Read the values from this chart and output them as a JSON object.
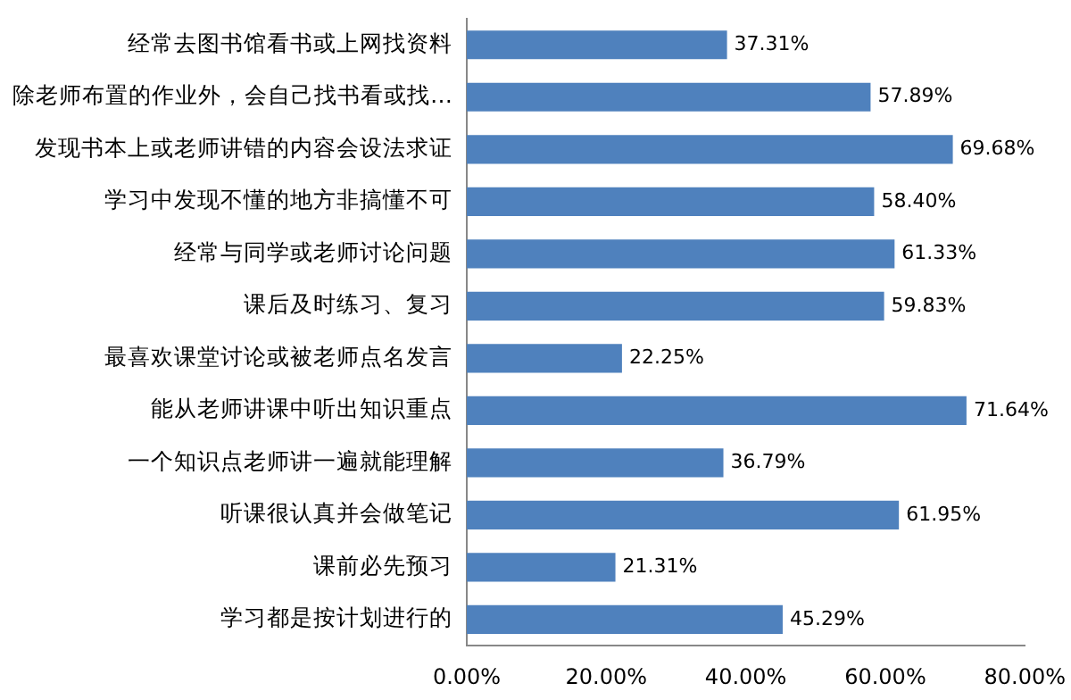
{
  "chart_data": {
    "type": "bar",
    "orientation": "horizontal",
    "categories": [
      "经常去图书馆看书或上网找资料",
      "除老师布置的作业外，会自己找书看或找…",
      "发现书本上或老师讲错的内容会设法求证",
      "学习中发现不懂的地方非搞懂不可",
      "经常与同学或老师讨论问题",
      "课后及时练习、复习",
      "最喜欢课堂讨论或被老师点名发言",
      "能从老师讲课中听出知识重点",
      "一个知识点老师讲一遍就能理解",
      "听课很认真并会做笔记",
      "课前必先预习",
      "学习都是按计划进行的"
    ],
    "values": [
      37.31,
      57.89,
      69.68,
      58.4,
      61.33,
      59.83,
      22.25,
      71.64,
      36.79,
      61.95,
      21.31,
      45.29
    ],
    "value_labels": [
      "37.31%",
      "57.89%",
      "69.68%",
      "58.40%",
      "61.33%",
      "59.83%",
      "22.25%",
      "71.64%",
      "36.79%",
      "61.95%",
      "21.31%",
      "45.29%"
    ],
    "color": "#4f81bd",
    "xlim": [
      0,
      80
    ],
    "xticks": [
      {
        "value": 0,
        "label": "0.00%"
      },
      {
        "value": 20,
        "label": "20.00%"
      },
      {
        "value": 40,
        "label": "40.00%"
      },
      {
        "value": 60,
        "label": "60.00%"
      },
      {
        "value": 80,
        "label": "80.00%"
      }
    ],
    "grid": false,
    "legend": false
  }
}
